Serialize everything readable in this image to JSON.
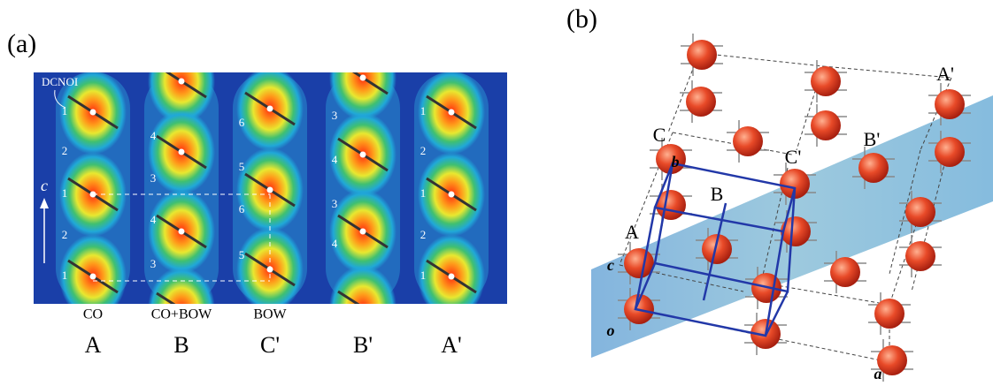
{
  "panel_a": {
    "label": "(a)",
    "molecule_label": "DCNOI",
    "axis_label": "c",
    "columns": [
      {
        "name": "A",
        "mode": "CO",
        "site_labels": [
          "1",
          "2",
          "1",
          "2",
          "1"
        ]
      },
      {
        "name": "B",
        "mode": "CO+BOW",
        "site_labels": [
          "4",
          "3",
          "4",
          "3"
        ]
      },
      {
        "name": "C'",
        "mode": "BOW",
        "site_labels": [
          "6",
          "5",
          "6",
          "5"
        ]
      },
      {
        "name": "B'",
        "site_labels": [
          "3",
          "4",
          "3",
          "4"
        ]
      },
      {
        "name": "A'",
        "site_labels": [
          "1",
          "2",
          "1",
          "2",
          "1"
        ]
      }
    ]
  },
  "panel_b": {
    "label": "(b)",
    "labels": [
      "b",
      "C",
      "B'",
      "A'",
      "C'",
      "B",
      "A",
      "c",
      "o",
      "a"
    ]
  }
}
